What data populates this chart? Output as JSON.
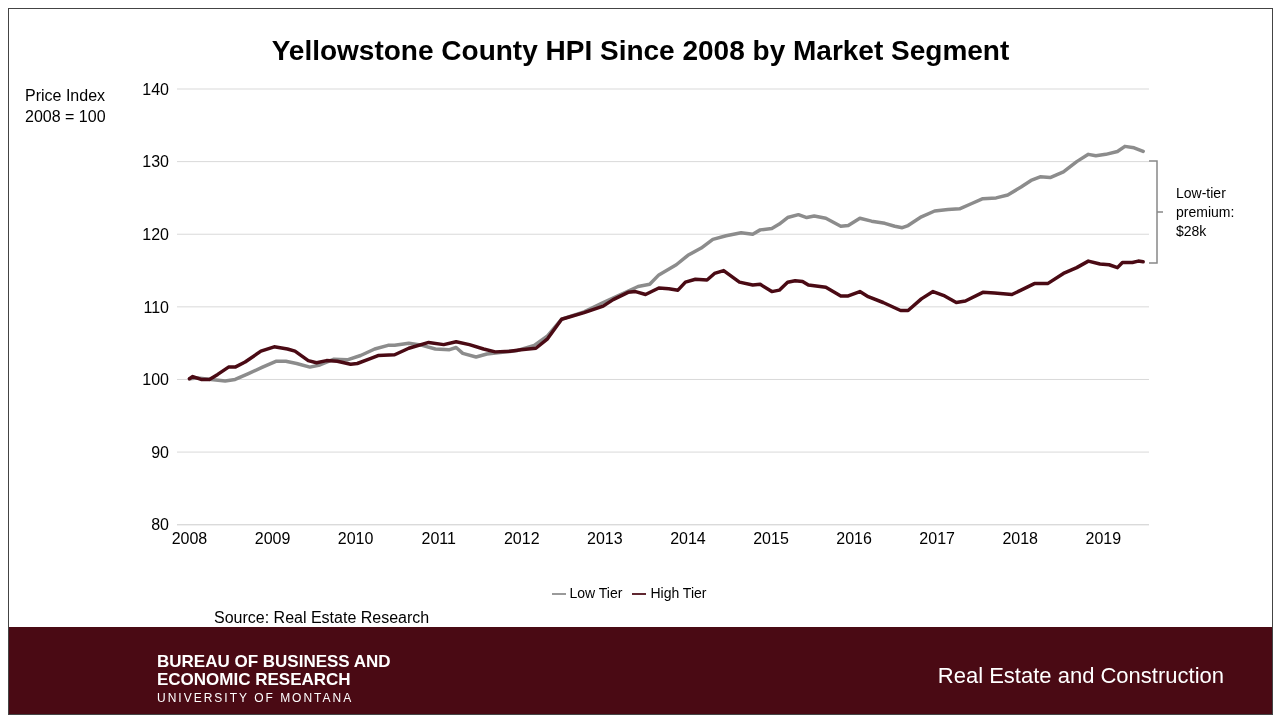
{
  "chart_data": {
    "type": "line",
    "title": "Yellowstone County HPI Since 2008 by Market Segment",
    "ylabel": "Price Index 2008 = 100",
    "xlim": [
      2007.85,
      2019.55
    ],
    "xticks": [
      2008,
      2009,
      2010,
      2011,
      2012,
      2013,
      2014,
      2015,
      2016,
      2017,
      2018,
      2019
    ],
    "ylim": [
      80,
      140
    ],
    "yticks": [
      80,
      90,
      100,
      110,
      120,
      130,
      140
    ],
    "grid": "y",
    "legend": "bottom",
    "marker": "none",
    "line_style": "solid",
    "series": [
      {
        "name": "Low Tier",
        "color": "#8c8c8c",
        "x": [
          2008.0,
          2008.1,
          2008.26,
          2008.43,
          2008.55,
          2008.71,
          2008.88,
          2009.04,
          2009.16,
          2009.29,
          2009.45,
          2009.57,
          2009.74,
          2009.9,
          2010.06,
          2010.23,
          2010.39,
          2010.47,
          2010.64,
          2010.8,
          2010.96,
          2011.13,
          2011.21,
          2011.29,
          2011.45,
          2011.58,
          2011.74,
          2011.95,
          2012.15,
          2012.31,
          2012.48,
          2012.75,
          2012.98,
          2013.4,
          2013.54,
          2013.65,
          2013.86,
          2014.0,
          2014.16,
          2014.3,
          2014.46,
          2014.64,
          2014.78,
          2014.87,
          2015.01,
          2015.1,
          2015.2,
          2015.33,
          2015.43,
          2015.52,
          2015.66,
          2015.84,
          2015.93,
          2016.07,
          2016.21,
          2016.37,
          2016.49,
          2016.58,
          2016.65,
          2016.81,
          2016.97,
          2017.13,
          2017.27,
          2017.41,
          2017.55,
          2017.71,
          2017.85,
          2018.01,
          2018.13,
          2018.24,
          2018.36,
          2018.52,
          2018.68,
          2018.82,
          2018.91,
          2019.03,
          2019.17,
          2019.26,
          2019.37,
          2019.48
        ],
        "values": [
          100.1,
          100.2,
          100.0,
          99.8,
          100.0,
          100.8,
          101.7,
          102.5,
          102.5,
          102.2,
          101.7,
          102.0,
          102.8,
          102.7,
          103.3,
          104.2,
          104.7,
          104.7,
          105.0,
          104.7,
          104.2,
          104.1,
          104.4,
          103.6,
          103.1,
          103.5,
          103.7,
          104.0,
          104.7,
          106.0,
          108.3,
          109.3,
          110.6,
          112.8,
          113.1,
          114.4,
          115.8,
          117.1,
          118.1,
          119.3,
          119.8,
          120.2,
          120.0,
          120.6,
          120.8,
          121.4,
          122.3,
          122.7,
          122.3,
          122.5,
          122.2,
          121.1,
          121.2,
          122.2,
          121.8,
          121.5,
          121.1,
          120.9,
          121.2,
          122.4,
          123.2,
          123.4,
          123.5,
          124.2,
          124.9,
          125.0,
          125.4,
          126.5,
          127.4,
          127.9,
          127.8,
          128.6,
          130.0,
          131.0,
          130.8,
          131.0,
          131.4,
          132.1,
          131.9,
          131.4
        ]
      },
      {
        "name": "High Tier",
        "color": "#4a0a14",
        "x": [
          2008.0,
          2008.04,
          2008.14,
          2008.24,
          2008.34,
          2008.47,
          2008.55,
          2008.67,
          2008.86,
          2009.02,
          2009.18,
          2009.27,
          2009.43,
          2009.53,
          2009.65,
          2009.78,
          2009.94,
          2010.02,
          2010.16,
          2010.27,
          2010.47,
          2010.64,
          2010.88,
          2011.06,
          2011.21,
          2011.37,
          2011.54,
          2011.68,
          2011.86,
          2011.99,
          2012.17,
          2012.31,
          2012.48,
          2012.75,
          2012.98,
          2013.1,
          2013.28,
          2013.37,
          2013.49,
          2013.65,
          2013.77,
          2013.88,
          2013.97,
          2014.09,
          2014.23,
          2014.32,
          2014.43,
          2014.62,
          2014.78,
          2014.87,
          2015.01,
          2015.1,
          2015.2,
          2015.29,
          2015.38,
          2015.45,
          2015.66,
          2015.84,
          2015.93,
          2016.07,
          2016.17,
          2016.35,
          2016.56,
          2016.65,
          2016.81,
          2016.95,
          2017.09,
          2017.23,
          2017.34,
          2017.55,
          2017.69,
          2017.9,
          2018.01,
          2018.17,
          2018.33,
          2018.52,
          2018.68,
          2018.82,
          2018.96,
          2019.07,
          2019.17,
          2019.23,
          2019.35,
          2019.42,
          2019.48
        ],
        "values": [
          100.1,
          100.4,
          100.0,
          100.0,
          100.7,
          101.7,
          101.7,
          102.4,
          103.9,
          104.5,
          104.2,
          103.9,
          102.6,
          102.3,
          102.6,
          102.5,
          102.1,
          102.2,
          102.8,
          103.3,
          103.4,
          104.3,
          105.1,
          104.8,
          105.2,
          104.8,
          104.2,
          103.8,
          103.9,
          104.1,
          104.3,
          105.6,
          108.3,
          109.2,
          110.1,
          111.0,
          112.0,
          112.1,
          111.7,
          112.6,
          112.5,
          112.3,
          113.4,
          113.8,
          113.7,
          114.6,
          115.0,
          113.4,
          113.0,
          113.1,
          112.1,
          112.3,
          113.4,
          113.6,
          113.5,
          113.0,
          112.7,
          111.5,
          111.5,
          112.1,
          111.4,
          110.6,
          109.5,
          109.5,
          111.1,
          112.1,
          111.5,
          110.6,
          110.8,
          112.0,
          111.9,
          111.7,
          112.3,
          113.2,
          113.2,
          114.6,
          115.4,
          116.3,
          115.9,
          115.8,
          115.4,
          116.1,
          116.1,
          116.3,
          116.2
        ]
      }
    ],
    "annotations": [
      "Low-tier premium: $28k",
      "Source: Real Estate Research",
      "BUREAU OF BUSINESS AND ECONOMIC RESEARCH",
      "UNIVERSITY OF MONTANA",
      "Real Estate and Construction"
    ]
  }
}
